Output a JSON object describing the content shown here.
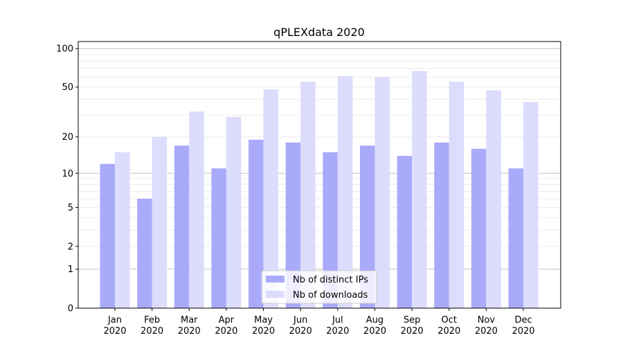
{
  "chart_data": {
    "type": "bar",
    "title": "qPLEXdata 2020",
    "xlabel": "",
    "ylabel": "",
    "y_scale": "log(1+y)",
    "ylim": [
      0,
      113
    ],
    "yticks": [
      0,
      1,
      2,
      5,
      10,
      20,
      50,
      100
    ],
    "ytick_labels": [
      "0",
      "1",
      "2",
      "5",
      "10",
      "20",
      "50",
      "100"
    ],
    "grid": true,
    "categories": [
      "Jan\n2020",
      "Feb\n2020",
      "Mar\n2020",
      "Apr\n2020",
      "May\n2020",
      "Jun\n2020",
      "Jul\n2020",
      "Aug\n2020",
      "Sep\n2020",
      "Oct\n2020",
      "Nov\n2020",
      "Dec\n2020"
    ],
    "category_lines": [
      [
        "Jan",
        "2020"
      ],
      [
        "Feb",
        "2020"
      ],
      [
        "Mar",
        "2020"
      ],
      [
        "Apr",
        "2020"
      ],
      [
        "May",
        "2020"
      ],
      [
        "Jun",
        "2020"
      ],
      [
        "Jul",
        "2020"
      ],
      [
        "Aug",
        "2020"
      ],
      [
        "Sep",
        "2020"
      ],
      [
        "Oct",
        "2020"
      ],
      [
        "Nov",
        "2020"
      ],
      [
        "Dec",
        "2020"
      ]
    ],
    "series": [
      {
        "name": "Nb of distinct IPs",
        "color": "#aaaafb",
        "values": [
          12,
          6,
          17,
          11,
          19,
          18,
          15,
          17,
          14,
          18,
          16,
          11
        ]
      },
      {
        "name": "Nb of downloads",
        "color": "#dcdcfd",
        "values": [
          15,
          20,
          32,
          29,
          48,
          55,
          61,
          60,
          67,
          55,
          47,
          38
        ]
      }
    ],
    "legend_position": "lower center"
  }
}
